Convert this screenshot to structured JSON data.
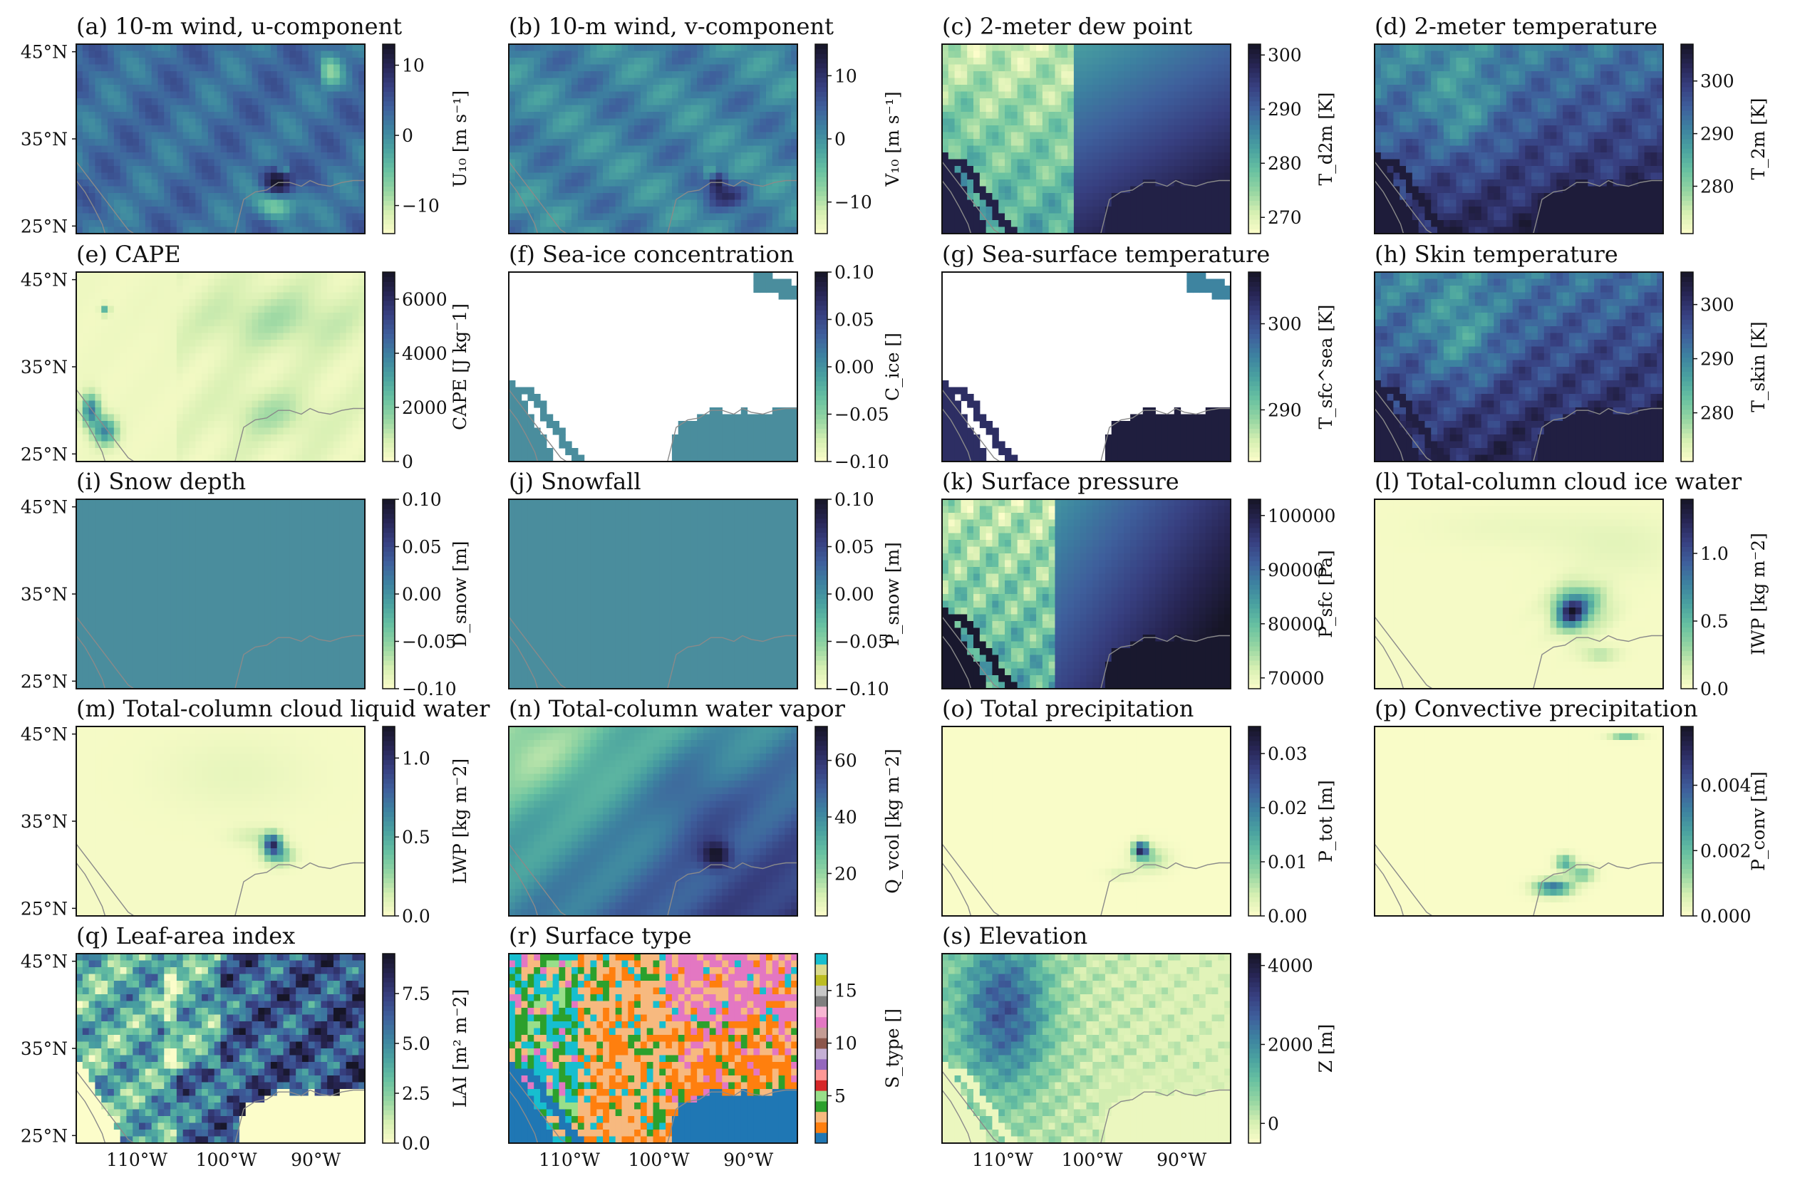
{
  "figure": {
    "lat_ticks": [
      "45°N",
      "35°N",
      "25°N"
    ],
    "lon_ticks": [
      "110°W",
      "100°W",
      "90°W"
    ]
  },
  "colors": {
    "cmap": [
      "#fcfdca",
      "#d6efb2",
      "#96d6a2",
      "#68c1a1",
      "#4aa2a0",
      "#3d82a0",
      "#3e5f9c",
      "#373f80",
      "#272553",
      "#161526"
    ],
    "nan_fill": "#ffffff",
    "uniform_field": "#4a8d9d",
    "coast": "#8a8a8a"
  },
  "chart_data": [
    {
      "id": "a",
      "type": "heatmap",
      "title": "(a) 10-m wind, u-component",
      "colorbar": {
        "label": "U₁₀ [m s⁻¹]",
        "ticks": [
          "10",
          "0",
          "−10"
        ],
        "range": [
          -14,
          13
        ]
      },
      "field": "wind_u"
    },
    {
      "id": "b",
      "type": "heatmap",
      "title": "(b) 10-m wind, v-component",
      "colorbar": {
        "label": "V₁₀ [m s⁻¹]",
        "ticks": [
          "10",
          "0",
          "−10"
        ],
        "range": [
          -15,
          15
        ]
      },
      "field": "wind_v"
    },
    {
      "id": "c",
      "type": "heatmap",
      "title": "(c) 2-meter dew point",
      "colorbar": {
        "label": "T_d2m [K]",
        "ticks": [
          "300",
          "290",
          "280",
          "270"
        ],
        "range": [
          267,
          302
        ]
      },
      "field": "dewpoint"
    },
    {
      "id": "d",
      "type": "heatmap",
      "title": "(d) 2-meter temperature",
      "colorbar": {
        "label": "T_2m [K]",
        "ticks": [
          "300",
          "290",
          "280"
        ],
        "range": [
          271,
          307
        ]
      },
      "field": "temperature"
    },
    {
      "id": "e",
      "type": "heatmap",
      "title": "(e) CAPE",
      "colorbar": {
        "label": "CAPE [J kg⁻1]",
        "ticks": [
          "6000",
          "4000",
          "2000",
          "0"
        ],
        "range": [
          0,
          7000
        ]
      },
      "field": "cape"
    },
    {
      "id": "f",
      "type": "heatmap",
      "title": "(f) Sea-ice concentration",
      "colorbar": {
        "label": "C_ice []",
        "ticks": [
          "0.10",
          "0.05",
          "0.00",
          "−0.05",
          "−0.10"
        ],
        "range": [
          -0.1,
          0.1
        ]
      },
      "field": "seaice"
    },
    {
      "id": "g",
      "type": "heatmap",
      "title": "(g) Sea-surface temperature",
      "colorbar": {
        "label": "T_sfc^sea [K]",
        "ticks": [
          "300",
          "290"
        ],
        "range": [
          284,
          306
        ]
      },
      "field": "sst"
    },
    {
      "id": "h",
      "type": "heatmap",
      "title": "(h) Skin temperature",
      "colorbar": {
        "label": "T_skin [K]",
        "ticks": [
          "300",
          "290",
          "280"
        ],
        "range": [
          271,
          306
        ]
      },
      "field": "skin"
    },
    {
      "id": "i",
      "type": "heatmap",
      "title": "(i) Snow depth",
      "colorbar": {
        "label": "D_snow [m]",
        "ticks": [
          "0.10",
          "0.05",
          "0.00",
          "−0.05",
          "−0.10"
        ],
        "range": [
          -0.1,
          0.1
        ]
      },
      "field": "uniform"
    },
    {
      "id": "j",
      "type": "heatmap",
      "title": "(j) Snowfall",
      "colorbar": {
        "label": "P_snow [m]",
        "ticks": [
          "0.10",
          "0.05",
          "0.00",
          "−0.05",
          "−0.10"
        ],
        "range": [
          -0.1,
          0.1
        ]
      },
      "field": "uniform"
    },
    {
      "id": "k",
      "type": "heatmap",
      "title": "(k) Surface pressure",
      "colorbar": {
        "label": "P_sfc [Pa]",
        "ticks": [
          "100000",
          "90000",
          "80000",
          "70000"
        ],
        "range": [
          68000,
          103000
        ]
      },
      "field": "pressure"
    },
    {
      "id": "l",
      "type": "heatmap",
      "title": "(l) Total-column cloud ice water",
      "colorbar": {
        "label": "IWP [kg m⁻2]",
        "ticks": [
          "1.0",
          "0.5",
          "0.0"
        ],
        "range": [
          0,
          1.4
        ]
      },
      "field": "iwp"
    },
    {
      "id": "m",
      "type": "heatmap",
      "title": "(m) Total-column cloud liquid water",
      "colorbar": {
        "label": "LWP [kg m⁻2]",
        "ticks": [
          "1.0",
          "0.5",
          "0.0"
        ],
        "range": [
          0,
          1.2
        ]
      },
      "field": "lwp"
    },
    {
      "id": "n",
      "type": "heatmap",
      "title": "(n) Total-column water vapor",
      "colorbar": {
        "label": "Q_vcol [kg m⁻2]",
        "ticks": [
          "60",
          "40",
          "20"
        ],
        "range": [
          5,
          72
        ]
      },
      "field": "vapor"
    },
    {
      "id": "o",
      "type": "heatmap",
      "title": "(o) Total precipitation",
      "colorbar": {
        "label": "P_tot [m]",
        "ticks": [
          "0.03",
          "0.02",
          "0.01",
          "0.00"
        ],
        "range": [
          0,
          0.035
        ]
      },
      "field": "precip"
    },
    {
      "id": "p",
      "type": "heatmap",
      "title": "(p) Convective precipitation",
      "colorbar": {
        "label": "P_conv [m]",
        "ticks": [
          "0.004",
          "0.002",
          "0.000"
        ],
        "range": [
          0,
          0.0058
        ]
      },
      "field": "convprecip"
    },
    {
      "id": "q",
      "type": "heatmap",
      "title": "(q) Leaf-area index",
      "colorbar": {
        "label": "LAI [m² m⁻2]",
        "ticks": [
          "7.5",
          "5.0",
          "2.5",
          "0.0"
        ],
        "range": [
          0,
          9.5
        ]
      },
      "field": "lai"
    },
    {
      "id": "r",
      "type": "heatmap",
      "title": "(r) Surface type",
      "colorbar": {
        "label": "S_type []",
        "ticks": [
          "15",
          "10",
          "5"
        ],
        "range": [
          0.5,
          18.5
        ],
        "categorical": true
      },
      "field": "surftype"
    },
    {
      "id": "s",
      "type": "heatmap",
      "title": "(s) Elevation",
      "colorbar": {
        "label": "Z [m]",
        "ticks": [
          "4000",
          "2000",
          "0"
        ],
        "range": [
          -500,
          4300
        ]
      },
      "field": "elevation"
    }
  ]
}
